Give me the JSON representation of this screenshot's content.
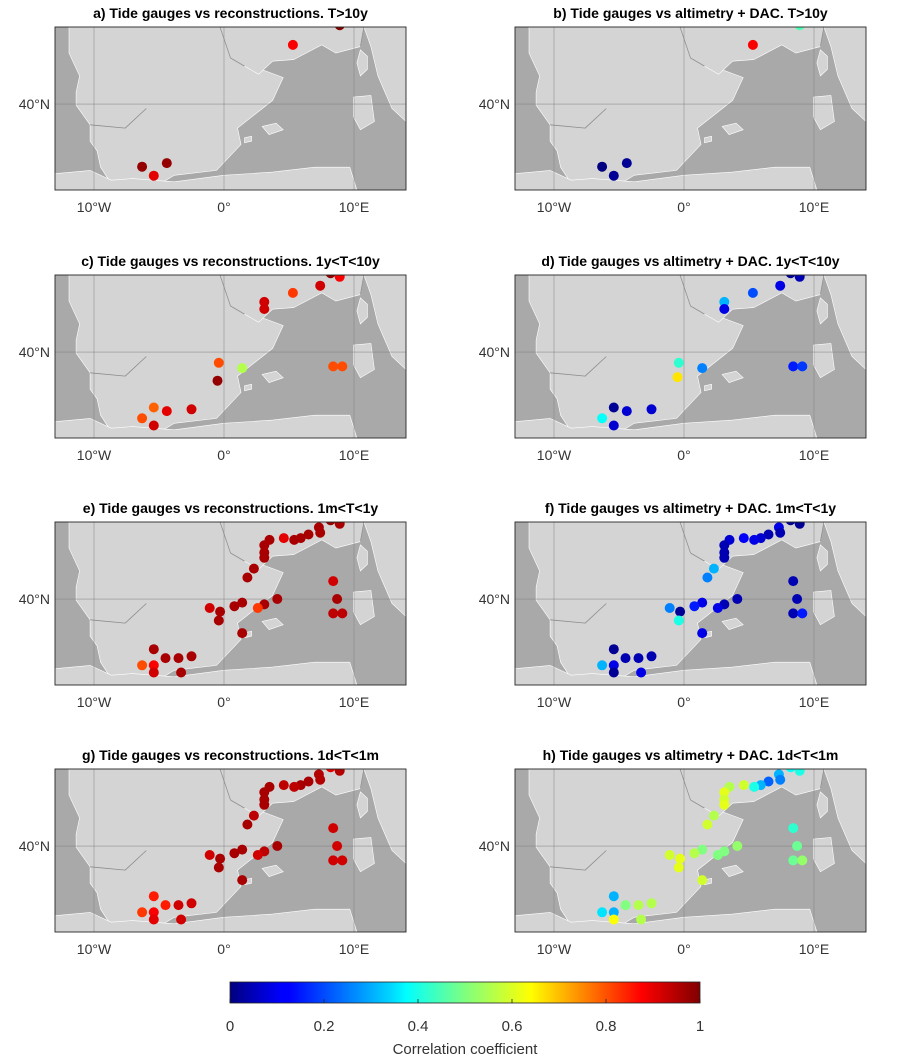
{
  "chart_data": {
    "type": "scatter",
    "colormap": "jet",
    "color_range": [
      0,
      1
    ],
    "map_extent": {
      "lon": [
        -13,
        14
      ],
      "lat": [
        35.2,
        44.3
      ]
    },
    "colorbar": {
      "label": "Correlation coefficient",
      "ticks": [
        "0",
        "0.2",
        "0.4",
        "0.6",
        "0.8",
        "1"
      ]
    },
    "x_ticks": [
      {
        "lon": -10,
        "label": "10°W"
      },
      {
        "lon": 0,
        "label": "0°"
      },
      {
        "lon": 10,
        "label": "10°E"
      }
    ],
    "y_ticks": [
      {
        "lat": 40,
        "label": "40°N"
      }
    ],
    "panels": [
      {
        "id": "a",
        "title": "a) Tide gauges vs reconstructions. T>10y",
        "points": [
          [
            5.3,
            43.3,
            0.88
          ],
          [
            8.9,
            44.4,
            1.0
          ],
          [
            -6.3,
            36.5,
            0.98
          ],
          [
            -4.4,
            36.7,
            0.98
          ],
          [
            -5.4,
            36.0,
            0.9
          ]
        ]
      },
      {
        "id": "b",
        "title": "b) Tide gauges vs altimetry + DAC. T>10y",
        "points": [
          [
            5.3,
            43.3,
            0.88
          ],
          [
            8.9,
            44.4,
            0.45
          ],
          [
            -6.3,
            36.5,
            0.0
          ],
          [
            -4.4,
            36.7,
            0.02
          ],
          [
            -5.4,
            36.0,
            0.02
          ]
        ]
      },
      {
        "id": "c",
        "title": "c) Tide gauges vs reconstructions. 1y<T<10y",
        "points": [
          [
            8.2,
            44.4,
            0.98
          ],
          [
            8.9,
            44.2,
            0.88
          ],
          [
            7.4,
            43.7,
            0.92
          ],
          [
            5.3,
            43.3,
            0.82
          ],
          [
            3.1,
            42.8,
            0.92
          ],
          [
            3.1,
            42.4,
            0.92
          ],
          [
            -0.4,
            39.4,
            0.8
          ],
          [
            -0.5,
            38.4,
            0.98
          ],
          [
            1.4,
            39.1,
            0.55
          ],
          [
            8.4,
            39.2,
            0.8
          ],
          [
            9.1,
            39.2,
            0.8
          ],
          [
            -5.4,
            36.9,
            0.78
          ],
          [
            -4.4,
            36.7,
            0.9
          ],
          [
            -2.5,
            36.8,
            0.92
          ],
          [
            -6.3,
            36.3,
            0.8
          ],
          [
            -5.4,
            35.9,
            0.92
          ]
        ]
      },
      {
        "id": "d",
        "title": "d) Tide gauges vs altimetry + DAC. 1y<T<10y",
        "points": [
          [
            8.2,
            44.4,
            0.02
          ],
          [
            8.9,
            44.2,
            0.05
          ],
          [
            7.4,
            43.7,
            0.1
          ],
          [
            5.3,
            43.3,
            0.2
          ],
          [
            3.1,
            42.8,
            0.3
          ],
          [
            3.1,
            42.4,
            0.1
          ],
          [
            -0.4,
            39.4,
            0.42
          ],
          [
            -0.5,
            38.6,
            0.65
          ],
          [
            1.4,
            39.1,
            0.25
          ],
          [
            8.4,
            39.2,
            0.15
          ],
          [
            9.1,
            39.2,
            0.18
          ],
          [
            -5.4,
            36.9,
            0.02
          ],
          [
            -4.4,
            36.7,
            0.08
          ],
          [
            -2.5,
            36.8,
            0.08
          ],
          [
            -6.3,
            36.3,
            0.38
          ],
          [
            -5.4,
            35.9,
            0.08
          ]
        ]
      },
      {
        "id": "e",
        "title": "e) Tide gauges vs reconstructions. 1m<T<1y",
        "points": [
          [
            8.2,
            44.4,
            0.98
          ],
          [
            8.9,
            44.2,
            0.96
          ],
          [
            7.3,
            44.0,
            0.96
          ],
          [
            7.4,
            43.7,
            0.96
          ],
          [
            6.5,
            43.6,
            0.96
          ],
          [
            5.9,
            43.4,
            0.96
          ],
          [
            5.4,
            43.3,
            0.96
          ],
          [
            4.6,
            43.4,
            0.9
          ],
          [
            3.5,
            43.3,
            0.96
          ],
          [
            3.1,
            43.0,
            0.96
          ],
          [
            3.1,
            42.6,
            0.96
          ],
          [
            3.1,
            42.3,
            0.96
          ],
          [
            2.3,
            41.7,
            0.96
          ],
          [
            1.8,
            41.2,
            0.96
          ],
          [
            3.1,
            39.7,
            0.96
          ],
          [
            4.1,
            40.0,
            0.96
          ],
          [
            2.6,
            39.5,
            0.82
          ],
          [
            8.4,
            41.0,
            0.92
          ],
          [
            8.7,
            40.0,
            0.96
          ],
          [
            8.4,
            39.2,
            0.94
          ],
          [
            9.1,
            39.2,
            0.94
          ],
          [
            1.4,
            39.8,
            0.96
          ],
          [
            0.8,
            39.6,
            0.96
          ],
          [
            -0.3,
            39.3,
            0.96
          ],
          [
            -1.1,
            39.5,
            0.92
          ],
          [
            -0.4,
            38.8,
            0.96
          ],
          [
            1.4,
            38.1,
            0.96
          ],
          [
            -5.4,
            37.2,
            0.96
          ],
          [
            -4.5,
            36.7,
            0.96
          ],
          [
            -3.5,
            36.7,
            0.96
          ],
          [
            -2.5,
            36.8,
            0.96
          ],
          [
            -6.3,
            36.3,
            0.8
          ],
          [
            -5.4,
            36.3,
            0.88
          ],
          [
            -5.4,
            35.9,
            0.92
          ],
          [
            -3.3,
            35.9,
            0.96
          ]
        ]
      },
      {
        "id": "f",
        "title": "f) Tide gauges vs altimetry + DAC. 1m<T<1y",
        "points": [
          [
            8.2,
            44.4,
            0.02
          ],
          [
            8.9,
            44.2,
            0.02
          ],
          [
            7.3,
            44.0,
            0.1
          ],
          [
            7.4,
            43.7,
            0.05
          ],
          [
            6.5,
            43.6,
            0.05
          ],
          [
            5.9,
            43.4,
            0.08
          ],
          [
            5.4,
            43.3,
            0.1
          ],
          [
            4.6,
            43.4,
            0.12
          ],
          [
            3.5,
            43.3,
            0.08
          ],
          [
            3.1,
            43.0,
            0.05
          ],
          [
            3.1,
            42.6,
            0.05
          ],
          [
            3.1,
            42.3,
            0.05
          ],
          [
            2.3,
            41.7,
            0.3
          ],
          [
            1.8,
            41.2,
            0.25
          ],
          [
            3.1,
            39.7,
            0.05
          ],
          [
            4.1,
            40.0,
            0.05
          ],
          [
            2.6,
            39.5,
            0.1
          ],
          [
            8.4,
            41.0,
            0.05
          ],
          [
            8.7,
            40.0,
            0.05
          ],
          [
            8.4,
            39.2,
            0.05
          ],
          [
            9.1,
            39.2,
            0.15
          ],
          [
            1.4,
            39.8,
            0.1
          ],
          [
            0.8,
            39.6,
            0.15
          ],
          [
            -0.3,
            39.3,
            0.02
          ],
          [
            -1.1,
            39.5,
            0.25
          ],
          [
            -0.4,
            38.8,
            0.4
          ],
          [
            1.4,
            38.1,
            0.1
          ],
          [
            -5.4,
            37.2,
            0.02
          ],
          [
            -4.5,
            36.7,
            0.05
          ],
          [
            -3.5,
            36.7,
            0.05
          ],
          [
            -2.5,
            36.8,
            0.05
          ],
          [
            -6.3,
            36.3,
            0.3
          ],
          [
            -5.4,
            36.3,
            0.1
          ],
          [
            -5.4,
            35.9,
            0.02
          ],
          [
            -3.3,
            35.9,
            0.1
          ]
        ]
      },
      {
        "id": "g",
        "title": "g) Tide gauges vs reconstructions. 1d<T<1m",
        "points": [
          [
            8.2,
            44.4,
            0.9
          ],
          [
            8.9,
            44.2,
            0.95
          ],
          [
            7.3,
            44.0,
            0.95
          ],
          [
            7.4,
            43.7,
            0.95
          ],
          [
            6.5,
            43.6,
            0.96
          ],
          [
            5.9,
            43.4,
            0.96
          ],
          [
            5.4,
            43.3,
            0.94
          ],
          [
            4.6,
            43.4,
            0.94
          ],
          [
            3.5,
            43.3,
            0.96
          ],
          [
            3.1,
            43.0,
            0.96
          ],
          [
            3.1,
            42.6,
            0.96
          ],
          [
            3.1,
            42.3,
            0.96
          ],
          [
            2.3,
            41.7,
            0.94
          ],
          [
            1.8,
            41.2,
            0.96
          ],
          [
            3.1,
            39.7,
            0.94
          ],
          [
            4.1,
            40.0,
            0.96
          ],
          [
            2.6,
            39.5,
            0.92
          ],
          [
            8.4,
            41.0,
            0.92
          ],
          [
            8.7,
            40.0,
            0.92
          ],
          [
            8.4,
            39.2,
            0.92
          ],
          [
            9.1,
            39.2,
            0.92
          ],
          [
            1.4,
            39.8,
            0.96
          ],
          [
            0.8,
            39.6,
            0.96
          ],
          [
            -0.3,
            39.3,
            0.96
          ],
          [
            -1.1,
            39.5,
            0.92
          ],
          [
            -0.4,
            38.8,
            0.96
          ],
          [
            1.4,
            38.1,
            0.96
          ],
          [
            -5.4,
            37.2,
            0.85
          ],
          [
            -4.5,
            36.7,
            0.85
          ],
          [
            -3.5,
            36.7,
            0.92
          ],
          [
            -2.5,
            36.8,
            0.92
          ],
          [
            -6.3,
            36.3,
            0.82
          ],
          [
            -5.4,
            36.3,
            0.88
          ],
          [
            -5.4,
            35.9,
            0.9
          ],
          [
            -3.3,
            35.9,
            0.92
          ]
        ]
      },
      {
        "id": "h",
        "title": "h) Tide gauges vs altimetry + DAC. 1d<T<1m",
        "points": [
          [
            8.2,
            44.4,
            0.38
          ],
          [
            8.9,
            44.2,
            0.4
          ],
          [
            7.3,
            44.0,
            0.3
          ],
          [
            7.4,
            43.7,
            0.25
          ],
          [
            6.5,
            43.6,
            0.22
          ],
          [
            5.9,
            43.4,
            0.3
          ],
          [
            5.4,
            43.3,
            0.4
          ],
          [
            4.6,
            43.4,
            0.58
          ],
          [
            3.5,
            43.3,
            0.55
          ],
          [
            3.1,
            43.0,
            0.6
          ],
          [
            3.1,
            42.6,
            0.58
          ],
          [
            3.1,
            42.3,
            0.6
          ],
          [
            2.3,
            41.7,
            0.55
          ],
          [
            1.8,
            41.2,
            0.58
          ],
          [
            3.1,
            39.7,
            0.5
          ],
          [
            4.1,
            40.0,
            0.52
          ],
          [
            2.6,
            39.5,
            0.5
          ],
          [
            8.4,
            41.0,
            0.42
          ],
          [
            8.7,
            40.0,
            0.48
          ],
          [
            8.4,
            39.2,
            0.48
          ],
          [
            9.1,
            39.2,
            0.52
          ],
          [
            1.4,
            39.8,
            0.5
          ],
          [
            0.8,
            39.6,
            0.55
          ],
          [
            -0.3,
            39.3,
            0.6
          ],
          [
            -1.1,
            39.5,
            0.58
          ],
          [
            -0.4,
            38.8,
            0.6
          ],
          [
            1.4,
            38.1,
            0.58
          ],
          [
            -5.4,
            37.2,
            0.3
          ],
          [
            -4.5,
            36.7,
            0.5
          ],
          [
            -3.5,
            36.7,
            0.55
          ],
          [
            -2.5,
            36.8,
            0.55
          ],
          [
            -6.3,
            36.3,
            0.35
          ],
          [
            -5.4,
            36.3,
            0.3
          ],
          [
            -5.4,
            35.9,
            0.62
          ],
          [
            -3.3,
            35.9,
            0.55
          ]
        ]
      }
    ]
  }
}
